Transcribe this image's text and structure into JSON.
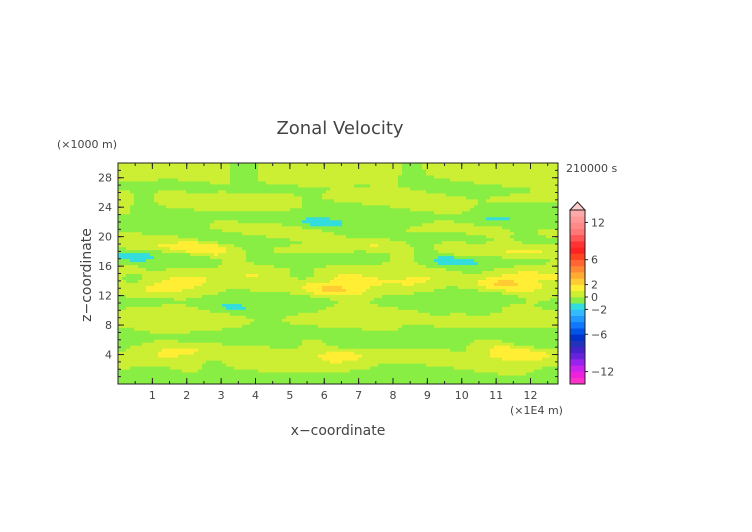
{
  "chart_data": {
    "type": "heatmap",
    "title": "Zonal Velocity",
    "xlabel": "x−coordinate",
    "ylabel": "z−coordinate",
    "x_unit": "(×1E4 m)",
    "y_unit": "(×1000 m)",
    "time_label": "210000 s",
    "xlim": [
      0,
      12.8
    ],
    "ylim": [
      0,
      30
    ],
    "x_ticks": [
      "1",
      "2",
      "3",
      "4",
      "5",
      "6",
      "7",
      "8",
      "9",
      "10",
      "11",
      "12"
    ],
    "x_tick_values": [
      1,
      2,
      3,
      4,
      5,
      6,
      7,
      8,
      9,
      10,
      11,
      12
    ],
    "y_ticks": [
      "4",
      "8",
      "12",
      "16",
      "20",
      "24",
      "28"
    ],
    "y_tick_values": [
      4,
      8,
      12,
      16,
      20,
      24,
      28
    ],
    "colorbar": {
      "labels": [
        "12",
        "6",
        "2",
        "0",
        "−2",
        "−6",
        "−12"
      ],
      "label_values": [
        12,
        6,
        2,
        0,
        -2,
        -6,
        -12
      ],
      "levels": [
        -14,
        -13,
        -12,
        -11,
        -10,
        -9,
        -8,
        -7,
        -6,
        -5,
        -4,
        -3,
        -2,
        -1,
        0,
        1,
        2,
        3,
        4,
        5,
        6,
        7,
        8,
        9,
        10,
        11,
        12,
        13,
        14
      ],
      "colors": [
        "#ff33cc",
        "#ee22dd",
        "#cc22ee",
        "#9922ee",
        "#6622dd",
        "#4422cc",
        "#2233bb",
        "#0033cc",
        "#0055e6",
        "#1177ff",
        "#2299ff",
        "#33bbff",
        "#33dddd",
        "#88ee44",
        "#ccee33",
        "#ffee33",
        "#ffcc33",
        "#ffaa33",
        "#ff8833",
        "#ff6633",
        "#ff4422",
        "#ff2222",
        "#ff3333",
        "#ff5555",
        "#ff7777",
        "#ff8888",
        "#ff9999",
        "#ffaaaa"
      ]
    },
    "bands": [
      {
        "z": 28.5,
        "u": 0.9
      },
      {
        "z": 27.0,
        "u": -0.3
      },
      {
        "z": 25.0,
        "u": 0.8
      },
      {
        "z": 23.5,
        "u": -0.5
      },
      {
        "z": 21.8,
        "u": -1.6
      },
      {
        "z": 20.8,
        "u": 1.2
      },
      {
        "z": 19.5,
        "u": -1.3
      },
      {
        "z": 18.5,
        "u": 2.6
      },
      {
        "z": 17.0,
        "u": -2.2
      },
      {
        "z": 15.8,
        "u": 0.7
      },
      {
        "z": 14.5,
        "u": 2.0
      },
      {
        "z": 13.2,
        "u": 2.7
      },
      {
        "z": 12.0,
        "u": -0.6
      },
      {
        "z": 10.5,
        "u": -1.4
      },
      {
        "z": 9.5,
        "u": 1.2
      },
      {
        "z": 8.0,
        "u": 0.3
      },
      {
        "z": 6.8,
        "u": -0.9
      },
      {
        "z": 5.5,
        "u": -1.0
      },
      {
        "z": 4.3,
        "u": 2.4
      },
      {
        "z": 3.0,
        "u": 0.8
      },
      {
        "z": 1.8,
        "u": -0.3
      },
      {
        "z": 0.5,
        "u": -0.8
      }
    ]
  }
}
